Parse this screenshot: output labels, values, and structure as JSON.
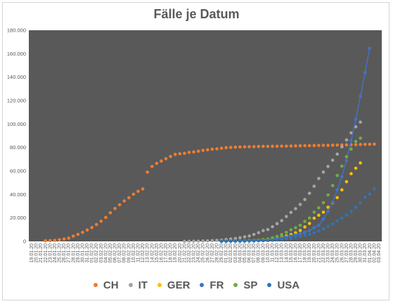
{
  "chart_data": {
    "type": "scatter",
    "title": "Fälle je Datum",
    "y_ticks": [
      "0",
      "20.000",
      "40.000",
      "60.000",
      "80.000",
      "100.000",
      "120.000",
      "140.000",
      "160.000",
      "180.000"
    ],
    "ylim": [
      0,
      180000
    ],
    "x_start": "19.01.20",
    "x_end": "03.04.20",
    "x_categories": [
      "19.01.20",
      "20.01.20",
      "21.01.20",
      "22.01.20",
      "23.01.20",
      "24.01.20",
      "25.01.20",
      "26.01.20",
      "27.01.20",
      "28.01.20",
      "29.01.20",
      "30.01.20",
      "31.01.20",
      "01.02.20",
      "02.02.20",
      "03.02.20",
      "04.02.20",
      "05.02.20",
      "06.02.20",
      "07.02.20",
      "08.02.20",
      "09.02.20",
      "10.02.20",
      "11.02.20",
      "12.02.20",
      "13.02.20",
      "14.02.20",
      "15.02.20",
      "16.02.20",
      "17.02.20",
      "18.02.20",
      "19.02.20",
      "20.02.20",
      "21.02.20",
      "22.02.20",
      "23.02.20",
      "24.02.20",
      "25.02.20",
      "26.02.20",
      "27.02.20",
      "28.02.20",
      "29.02.20",
      "01.03.20",
      "02.03.20",
      "03.03.20",
      "04.03.20",
      "05.03.20",
      "06.03.20",
      "07.03.20",
      "08.03.20",
      "09.03.20",
      "10.03.20",
      "11.03.20",
      "12.03.20",
      "13.03.20",
      "14.03.20",
      "15.03.20",
      "16.03.20",
      "17.03.20",
      "18.03.20",
      "19.03.20",
      "20.03.20",
      "21.03.20",
      "22.03.20",
      "23.03.20",
      "24.03.20",
      "25.03.20",
      "26.03.20",
      "27.03.20",
      "28.03.20",
      "29.03.20",
      "30.03.20",
      "31.03.20",
      "01.04.20",
      "02.04.20",
      "03.04.20"
    ],
    "grid": false,
    "legend_position": "bottom",
    "background": "#595959",
    "series": [
      {
        "name": "CH",
        "color": "#ED7D31",
        "line": false,
        "start": "22.01.20",
        "values": [
          500,
          650,
          900,
          1400,
          2000,
          2800,
          4500,
          6000,
          7700,
          9700,
          11800,
          14400,
          17200,
          20400,
          24400,
          28000,
          31200,
          34500,
          37200,
          40200,
          42700,
          44700,
          59000,
          63900,
          66500,
          68500,
          70500,
          72400,
          74200,
          74700,
          75100,
          75900,
          76300,
          76900,
          77600,
          78100,
          78600,
          78900,
          79400,
          79900,
          80100,
          80400,
          80500,
          80600,
          80700,
          80800,
          80900,
          81000,
          81000,
          81100,
          81100,
          81200,
          81200,
          81300,
          81400,
          81500,
          81600,
          81600,
          81700,
          81800,
          81900,
          81900,
          82000,
          82100,
          82200,
          82300,
          82400,
          82500,
          82600,
          82700,
          82800,
          82900
        ]
      },
      {
        "name": "IT",
        "color": "#A5A5A5",
        "line": false,
        "start": "21.02.20",
        "values": [
          20,
          80,
          150,
          230,
          320,
          450,
          650,
          890,
          1130,
          1690,
          2040,
          2500,
          3100,
          3900,
          4600,
          5900,
          7400,
          9200,
          10100,
          12500,
          15100,
          17700,
          21200,
          24700,
          27900,
          31500,
          35700,
          41000,
          47000,
          53600,
          59100,
          63900,
          69200,
          74400,
          80600,
          86500,
          92500,
          97700,
          101700
        ]
      },
      {
        "name": "GER",
        "color": "#FFC000",
        "line": false,
        "start": "29.02.20",
        "values": [
          80,
          130,
          160,
          200,
          260,
          480,
          670,
          800,
          1000,
          1200,
          1600,
          1900,
          2700,
          3700,
          4600,
          5800,
          7300,
          9300,
          12300,
          15300,
          19800,
          22300,
          24900,
          29100,
          32900,
          37300,
          43900,
          50900,
          57700,
          62400,
          66900
        ]
      },
      {
        "name": "FR",
        "color": "#4472C4",
        "line": true,
        "start": "29.02.20",
        "values": [
          70,
          100,
          130,
          190,
          210,
          290,
          380,
          650,
          950,
          1200,
          1500,
          1800,
          2300,
          2900,
          3600,
          4500,
          5400,
          6500,
          7700,
          9300,
          11700,
          13700,
          19100,
          25500,
          33300,
          44000,
          55200,
          68900,
          86000,
          104100,
          123800,
          144000,
          164600
        ]
      },
      {
        "name": "SP",
        "color": "#70AD47",
        "line": false,
        "start": "29.02.20",
        "values": [
          50,
          90,
          130,
          180,
          220,
          400,
          500,
          670,
          1000,
          1600,
          2100,
          2950,
          4200,
          5800,
          7700,
          9900,
          11700,
          13700,
          17100,
          19900,
          24900,
          28600,
          33000,
          39600,
          47600,
          56200,
          64100,
          72200,
          78700,
          85200,
          88000
        ]
      },
      {
        "name": "USA",
        "color": "#2E75B6",
        "line": false,
        "start": "29.02.20",
        "values": [
          20,
          30,
          50,
          80,
          110,
          160,
          220,
          320,
          420,
          600,
          800,
          1000,
          1300,
          1700,
          2200,
          2800,
          3500,
          4200,
          5100,
          6100,
          7400,
          8800,
          10700,
          12700,
          14800,
          17600,
          19900,
          22300,
          25600,
          29100,
          32900,
          37600,
          40200,
          44900
        ]
      }
    ]
  }
}
